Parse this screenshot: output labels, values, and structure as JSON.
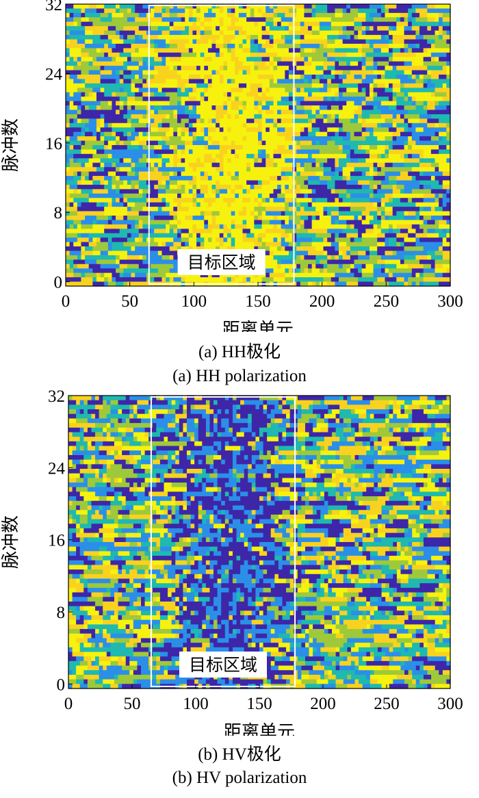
{
  "chart_data": [
    {
      "type": "heatmap",
      "title": "",
      "xlabel": "距离单元",
      "ylabel": "脉冲数",
      "xlim": [
        0,
        300
      ],
      "ylim": [
        0,
        32
      ],
      "xticks": [
        0,
        50,
        100,
        150,
        200,
        250,
        300
      ],
      "yticks": [
        0,
        8,
        16,
        24,
        32
      ],
      "colormap": [
        "#3e26a8",
        "#2b8fe8",
        "#1fb9b0",
        "#9ec93a",
        "#f9d21f",
        "#f6f20e"
      ],
      "grid": false,
      "annotation": {
        "label": "目标区域",
        "x_range": [
          65,
          178
        ],
        "y_range": [
          -1,
          32
        ]
      },
      "caption_cn": "(a) HH极化",
      "caption_en": "(a) HH polarization",
      "target_trend": "bright"
    },
    {
      "type": "heatmap",
      "title": "",
      "xlabel": "距离单元",
      "ylabel": "脉冲数",
      "xlim": [
        0,
        300
      ],
      "ylim": [
        0,
        32
      ],
      "xticks": [
        0,
        50,
        100,
        150,
        200,
        250,
        300
      ],
      "yticks": [
        0,
        8,
        16,
        24,
        32
      ],
      "colormap": [
        "#3e26a8",
        "#2b8fe8",
        "#1fb9b0",
        "#9ec93a",
        "#f9d21f",
        "#f6f20e"
      ],
      "grid": false,
      "annotation": {
        "label": "目标区域",
        "x_range": [
          65,
          178
        ],
        "y_range": [
          -1,
          32
        ]
      },
      "caption_cn": "(b) HV极化",
      "caption_en": "(b) HV polarization",
      "target_trend": "dark"
    }
  ]
}
